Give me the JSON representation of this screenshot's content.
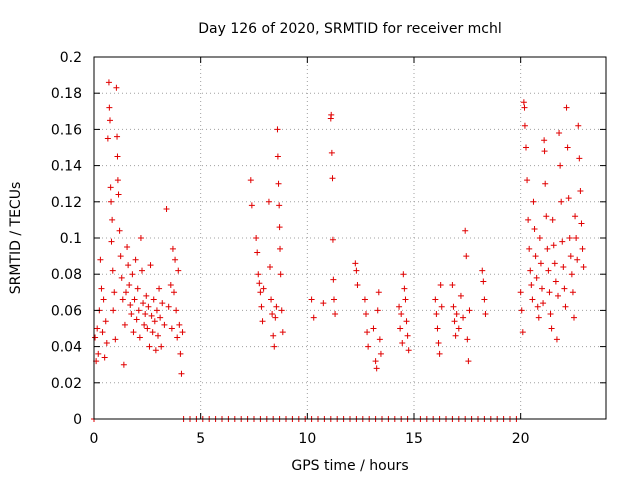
{
  "chart_data": {
    "type": "scatter",
    "title": "Day 126 of 2020, SRMTID for receiver mchl",
    "xlabel": "GPS time / hours",
    "ylabel": "SRMTID / TECUs",
    "xlim": [
      0,
      24
    ],
    "ylim": [
      0,
      0.2
    ],
    "xticks": [
      0,
      5,
      10,
      15,
      20
    ],
    "xtick_labels": [
      "0",
      "5",
      "10",
      "15",
      "20"
    ],
    "yticks": [
      0,
      0.02,
      0.04,
      0.06,
      0.08,
      0.1,
      0.12,
      0.14,
      0.16,
      0.18,
      0.2
    ],
    "ytick_labels": [
      "0",
      "0.02",
      "0.04",
      "0.06",
      "0.08",
      "0.1",
      "0.12",
      "0.14",
      "0.16",
      "0.18",
      "0.2"
    ],
    "grid": true,
    "marker": "+",
    "color": "#e00000",
    "series": [
      {
        "name": "SRMTID",
        "points": [
          [
            0.0,
            0.0
          ],
          [
            0.05,
            0.045
          ],
          [
            0.1,
            0.032
          ],
          [
            0.15,
            0.05
          ],
          [
            0.2,
            0.036
          ],
          [
            0.25,
            0.06
          ],
          [
            0.3,
            0.088
          ],
          [
            0.35,
            0.072
          ],
          [
            0.4,
            0.048
          ],
          [
            0.45,
            0.066
          ],
          [
            0.5,
            0.034
          ],
          [
            0.55,
            0.054
          ],
          [
            0.6,
            0.042
          ],
          [
            0.65,
            0.155
          ],
          [
            0.7,
            0.186
          ],
          [
            0.72,
            0.172
          ],
          [
            0.75,
            0.165
          ],
          [
            0.78,
            0.128
          ],
          [
            0.8,
            0.12
          ],
          [
            0.82,
            0.098
          ],
          [
            0.85,
            0.11
          ],
          [
            0.88,
            0.082
          ],
          [
            0.9,
            0.06
          ],
          [
            0.95,
            0.07
          ],
          [
            1.0,
            0.044
          ],
          [
            1.05,
            0.183
          ],
          [
            1.08,
            0.156
          ],
          [
            1.1,
            0.145
          ],
          [
            1.12,
            0.132
          ],
          [
            1.15,
            0.124
          ],
          [
            1.2,
            0.104
          ],
          [
            1.25,
            0.09
          ],
          [
            1.3,
            0.078
          ],
          [
            1.35,
            0.066
          ],
          [
            1.4,
            0.03
          ],
          [
            1.45,
            0.052
          ],
          [
            1.5,
            0.07
          ],
          [
            1.55,
            0.095
          ],
          [
            1.6,
            0.085
          ],
          [
            1.65,
            0.074
          ],
          [
            1.7,
            0.063
          ],
          [
            1.75,
            0.058
          ],
          [
            1.8,
            0.08
          ],
          [
            1.85,
            0.048
          ],
          [
            1.9,
            0.066
          ],
          [
            1.95,
            0.088
          ],
          [
            2.0,
            0.055
          ],
          [
            2.05,
            0.072
          ],
          [
            2.1,
            0.06
          ],
          [
            2.15,
            0.045
          ],
          [
            2.2,
            0.1
          ],
          [
            2.25,
            0.082
          ],
          [
            2.3,
            0.064
          ],
          [
            2.35,
            0.052
          ],
          [
            2.4,
            0.058
          ],
          [
            2.45,
            0.068
          ],
          [
            2.5,
            0.05
          ],
          [
            2.55,
            0.062
          ],
          [
            2.6,
            0.04
          ],
          [
            2.65,
            0.085
          ],
          [
            2.7,
            0.057
          ],
          [
            2.75,
            0.048
          ],
          [
            2.8,
            0.066
          ],
          [
            2.85,
            0.054
          ],
          [
            2.9,
            0.038
          ],
          [
            2.95,
            0.06
          ],
          [
            3.0,
            0.046
          ],
          [
            3.05,
            0.072
          ],
          [
            3.1,
            0.056
          ],
          [
            3.15,
            0.04
          ],
          [
            3.2,
            0.064
          ],
          [
            3.3,
            0.052
          ],
          [
            3.4,
            0.116
          ],
          [
            3.5,
            0.062
          ],
          [
            3.6,
            0.074
          ],
          [
            3.65,
            0.05
          ],
          [
            3.7,
            0.094
          ],
          [
            3.75,
            0.07
          ],
          [
            3.8,
            0.088
          ],
          [
            3.85,
            0.06
          ],
          [
            3.9,
            0.045
          ],
          [
            3.95,
            0.082
          ],
          [
            4.0,
            0.052
          ],
          [
            4.05,
            0.036
          ],
          [
            4.1,
            0.025
          ],
          [
            4.15,
            0.048
          ],
          [
            4.2,
            0.0
          ],
          [
            4.5,
            0.0
          ],
          [
            4.8,
            0.0
          ],
          [
            5.1,
            0.0
          ],
          [
            5.4,
            0.0
          ],
          [
            5.7,
            0.0
          ],
          [
            6.0,
            0.0
          ],
          [
            6.3,
            0.0
          ],
          [
            6.6,
            0.0
          ],
          [
            6.9,
            0.0
          ],
          [
            7.2,
            0.0
          ],
          [
            7.5,
            0.0
          ],
          [
            7.8,
            0.0
          ],
          [
            8.1,
            0.0
          ],
          [
            8.4,
            0.0
          ],
          [
            8.7,
            0.0
          ],
          [
            9.0,
            0.0
          ],
          [
            7.35,
            0.132
          ],
          [
            7.4,
            0.118
          ],
          [
            7.6,
            0.1
          ],
          [
            7.65,
            0.092
          ],
          [
            7.7,
            0.08
          ],
          [
            7.75,
            0.075
          ],
          [
            7.8,
            0.07
          ],
          [
            7.85,
            0.062
          ],
          [
            7.9,
            0.054
          ],
          [
            7.95,
            0.072
          ],
          [
            8.2,
            0.12
          ],
          [
            8.25,
            0.084
          ],
          [
            8.3,
            0.066
          ],
          [
            8.35,
            0.058
          ],
          [
            8.4,
            0.046
          ],
          [
            8.45,
            0.04
          ],
          [
            8.5,
            0.056
          ],
          [
            8.55,
            0.062
          ],
          [
            8.6,
            0.16
          ],
          [
            8.62,
            0.145
          ],
          [
            8.65,
            0.13
          ],
          [
            8.68,
            0.118
          ],
          [
            8.7,
            0.106
          ],
          [
            8.72,
            0.094
          ],
          [
            8.75,
            0.08
          ],
          [
            8.8,
            0.06
          ],
          [
            8.85,
            0.048
          ],
          [
            9.3,
            0.0
          ],
          [
            9.6,
            0.0
          ],
          [
            9.9,
            0.0
          ],
          [
            10.2,
            0.0
          ],
          [
            10.5,
            0.0
          ],
          [
            10.8,
            0.0
          ],
          [
            11.1,
            0.0
          ],
          [
            11.4,
            0.0
          ],
          [
            11.7,
            0.0
          ],
          [
            12.0,
            0.0
          ],
          [
            12.3,
            0.0
          ],
          [
            12.6,
            0.0
          ],
          [
            12.9,
            0.0
          ],
          [
            13.2,
            0.0
          ],
          [
            13.5,
            0.0
          ],
          [
            13.8,
            0.0
          ],
          [
            14.1,
            0.0
          ],
          [
            14.4,
            0.0
          ],
          [
            14.7,
            0.0
          ],
          [
            10.2,
            0.066
          ],
          [
            10.3,
            0.056
          ],
          [
            10.75,
            0.064
          ],
          [
            11.1,
            0.166
          ],
          [
            11.12,
            0.168
          ],
          [
            11.15,
            0.147
          ],
          [
            11.18,
            0.133
          ],
          [
            11.2,
            0.099
          ],
          [
            11.22,
            0.077
          ],
          [
            11.25,
            0.066
          ],
          [
            11.3,
            0.058
          ],
          [
            12.25,
            0.086
          ],
          [
            12.3,
            0.082
          ],
          [
            12.35,
            0.074
          ],
          [
            12.7,
            0.066
          ],
          [
            12.75,
            0.058
          ],
          [
            12.8,
            0.048
          ],
          [
            12.85,
            0.04
          ],
          [
            13.1,
            0.05
          ],
          [
            13.2,
            0.032
          ],
          [
            13.25,
            0.028
          ],
          [
            13.3,
            0.06
          ],
          [
            13.35,
            0.07
          ],
          [
            13.4,
            0.044
          ],
          [
            13.45,
            0.036
          ],
          [
            14.3,
            0.062
          ],
          [
            14.35,
            0.05
          ],
          [
            14.4,
            0.058
          ],
          [
            14.45,
            0.042
          ],
          [
            14.5,
            0.08
          ],
          [
            14.55,
            0.072
          ],
          [
            14.6,
            0.066
          ],
          [
            14.65,
            0.054
          ],
          [
            14.7,
            0.046
          ],
          [
            14.75,
            0.038
          ],
          [
            15.0,
            0.0
          ],
          [
            15.3,
            0.0
          ],
          [
            15.6,
            0.0
          ],
          [
            15.9,
            0.0
          ],
          [
            16.2,
            0.0
          ],
          [
            16.5,
            0.0
          ],
          [
            16.8,
            0.0
          ],
          [
            17.1,
            0.0
          ],
          [
            17.4,
            0.0
          ],
          [
            17.7,
            0.0
          ],
          [
            18.0,
            0.0
          ],
          [
            18.3,
            0.0
          ],
          [
            18.6,
            0.0
          ],
          [
            18.9,
            0.0
          ],
          [
            19.2,
            0.0
          ],
          [
            19.5,
            0.0
          ],
          [
            19.8,
            0.0
          ],
          [
            16.0,
            0.066
          ],
          [
            16.05,
            0.058
          ],
          [
            16.1,
            0.05
          ],
          [
            16.15,
            0.042
          ],
          [
            16.2,
            0.036
          ],
          [
            16.25,
            0.074
          ],
          [
            16.3,
            0.062
          ],
          [
            16.8,
            0.074
          ],
          [
            16.85,
            0.062
          ],
          [
            16.9,
            0.054
          ],
          [
            16.95,
            0.046
          ],
          [
            17.0,
            0.058
          ],
          [
            17.1,
            0.05
          ],
          [
            17.2,
            0.068
          ],
          [
            17.3,
            0.056
          ],
          [
            17.4,
            0.104
          ],
          [
            17.45,
            0.09
          ],
          [
            17.5,
            0.044
          ],
          [
            17.55,
            0.032
          ],
          [
            17.6,
            0.06
          ],
          [
            18.2,
            0.082
          ],
          [
            18.25,
            0.076
          ],
          [
            18.3,
            0.066
          ],
          [
            18.35,
            0.058
          ],
          [
            20.0,
            0.07
          ],
          [
            20.05,
            0.06
          ],
          [
            20.1,
            0.048
          ],
          [
            20.15,
            0.175
          ],
          [
            20.18,
            0.172
          ],
          [
            20.2,
            0.162
          ],
          [
            20.25,
            0.15
          ],
          [
            20.3,
            0.132
          ],
          [
            20.35,
            0.11
          ],
          [
            20.4,
            0.094
          ],
          [
            20.45,
            0.082
          ],
          [
            20.5,
            0.074
          ],
          [
            20.55,
            0.066
          ],
          [
            20.6,
            0.12
          ],
          [
            20.65,
            0.105
          ],
          [
            20.7,
            0.09
          ],
          [
            20.75,
            0.078
          ],
          [
            20.8,
            0.062
          ],
          [
            20.85,
            0.056
          ],
          [
            20.9,
            0.1
          ],
          [
            20.95,
            0.086
          ],
          [
            21.0,
            0.072
          ],
          [
            21.05,
            0.064
          ],
          [
            21.1,
            0.154
          ],
          [
            21.12,
            0.148
          ],
          [
            21.15,
            0.13
          ],
          [
            21.2,
            0.112
          ],
          [
            21.25,
            0.094
          ],
          [
            21.3,
            0.082
          ],
          [
            21.35,
            0.07
          ],
          [
            21.4,
            0.058
          ],
          [
            21.45,
            0.05
          ],
          [
            21.5,
            0.11
          ],
          [
            21.55,
            0.096
          ],
          [
            21.6,
            0.086
          ],
          [
            21.65,
            0.076
          ],
          [
            21.7,
            0.044
          ],
          [
            21.75,
            0.068
          ],
          [
            21.8,
            0.158
          ],
          [
            21.85,
            0.14
          ],
          [
            21.9,
            0.12
          ],
          [
            21.95,
            0.098
          ],
          [
            22.0,
            0.084
          ],
          [
            22.05,
            0.072
          ],
          [
            22.1,
            0.062
          ],
          [
            22.15,
            0.172
          ],
          [
            22.2,
            0.15
          ],
          [
            22.25,
            0.122
          ],
          [
            22.3,
            0.1
          ],
          [
            22.35,
            0.09
          ],
          [
            22.4,
            0.08
          ],
          [
            22.45,
            0.07
          ],
          [
            22.5,
            0.056
          ],
          [
            22.55,
            0.112
          ],
          [
            22.6,
            0.1
          ],
          [
            22.65,
            0.088
          ],
          [
            22.7,
            0.162
          ],
          [
            22.75,
            0.144
          ],
          [
            22.8,
            0.126
          ],
          [
            22.85,
            0.108
          ],
          [
            22.9,
            0.094
          ],
          [
            22.95,
            0.084
          ]
        ]
      }
    ]
  }
}
